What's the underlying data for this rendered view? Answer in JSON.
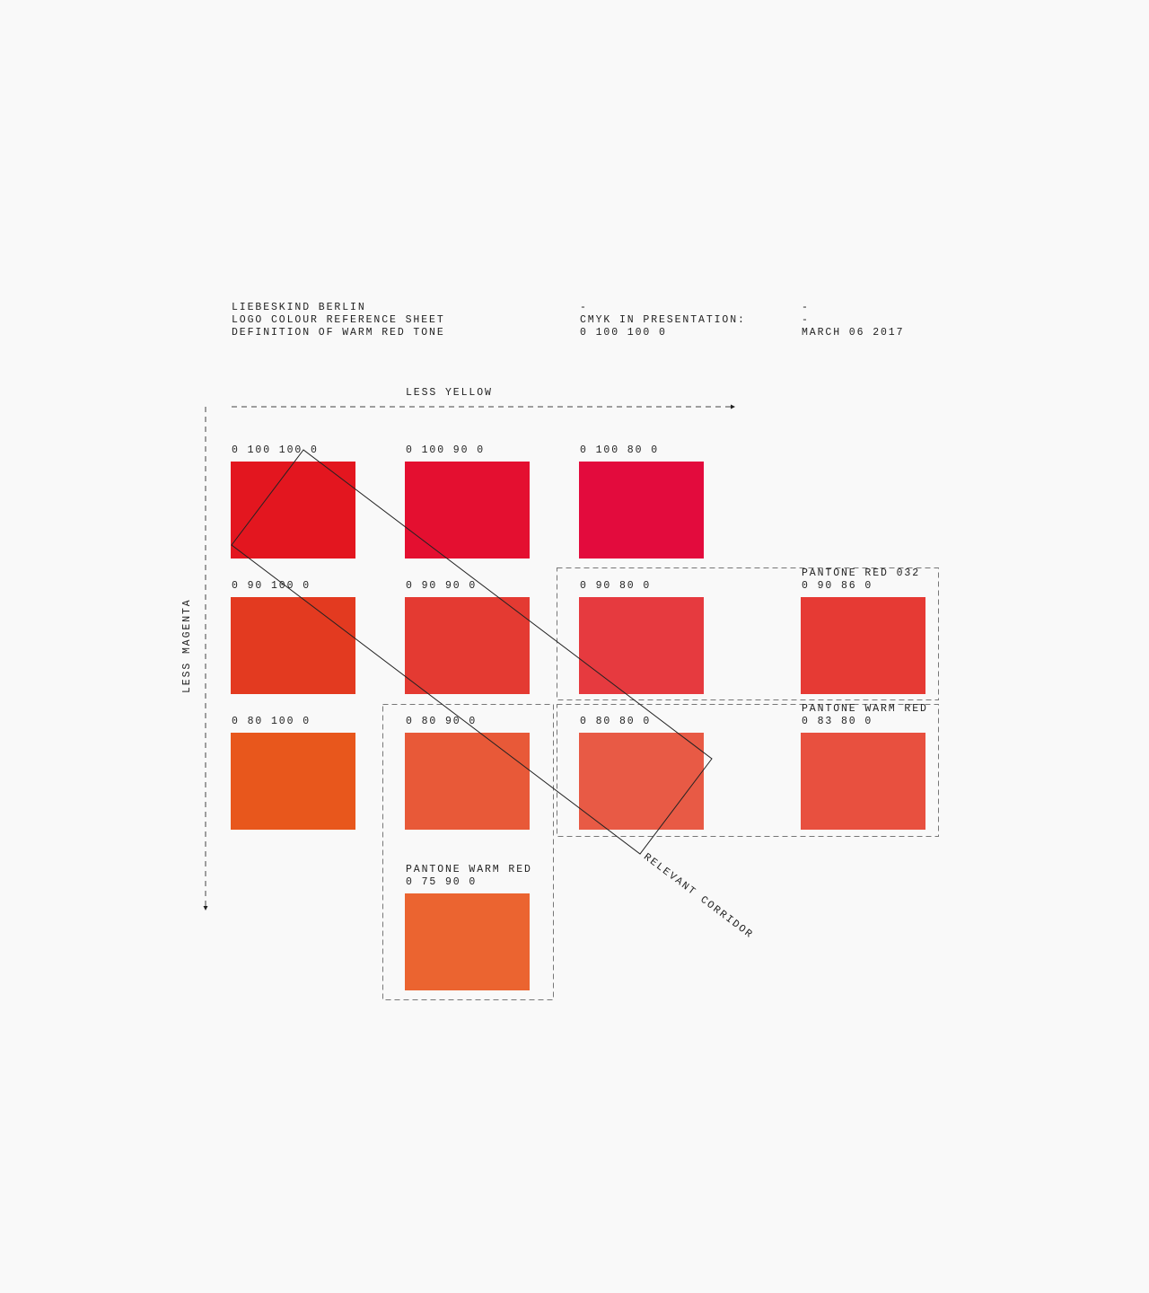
{
  "header": {
    "col1": [
      "LIEBESKIND BERLIN",
      "LOGO COLOUR REFERENCE SHEET",
      "DEFINITION OF WARM RED TONE"
    ],
    "col2": [
      "-",
      "CMYK IN PRESENTATION:",
      "0 100 100 0"
    ],
    "col3": [
      "-",
      "-",
      "MARCH 06 2017"
    ]
  },
  "axes": {
    "x_label": "LESS YELLOW",
    "y_label": "LESS MAGENTA"
  },
  "corridor_label": "RELEVANT CORRIDOR",
  "swatches": [
    {
      "lines": [
        "0 100 100 0"
      ],
      "color": "#e3161f"
    },
    {
      "lines": [
        "0 100 90 0"
      ],
      "color": "#e40f30"
    },
    {
      "lines": [
        "0 100 80 0"
      ],
      "color": "#e30b3d"
    },
    {
      "lines": [
        "0 90 100 0"
      ],
      "color": "#e33a20"
    },
    {
      "lines": [
        "0 90 90 0"
      ],
      "color": "#e43a32"
    },
    {
      "lines": [
        "0 90 80 0"
      ],
      "color": "#e63a3f"
    },
    {
      "lines": [
        "PANTONE RED 032",
        "0 90 86 0"
      ],
      "color": "#e63a34"
    },
    {
      "lines": [
        "0 80 100 0"
      ],
      "color": "#e8571c"
    },
    {
      "lines": [
        "0 80 90 0"
      ],
      "color": "#e85938"
    },
    {
      "lines": [
        "0 80 80 0"
      ],
      "color": "#e85a45"
    },
    {
      "lines": [
        "PANTONE WARM RED",
        "0 83 80 0"
      ],
      "color": "#e8503f"
    },
    {
      "lines": [
        "PANTONE WARM RED",
        "0 75 90 0"
      ],
      "color": "#eb6430"
    }
  ]
}
